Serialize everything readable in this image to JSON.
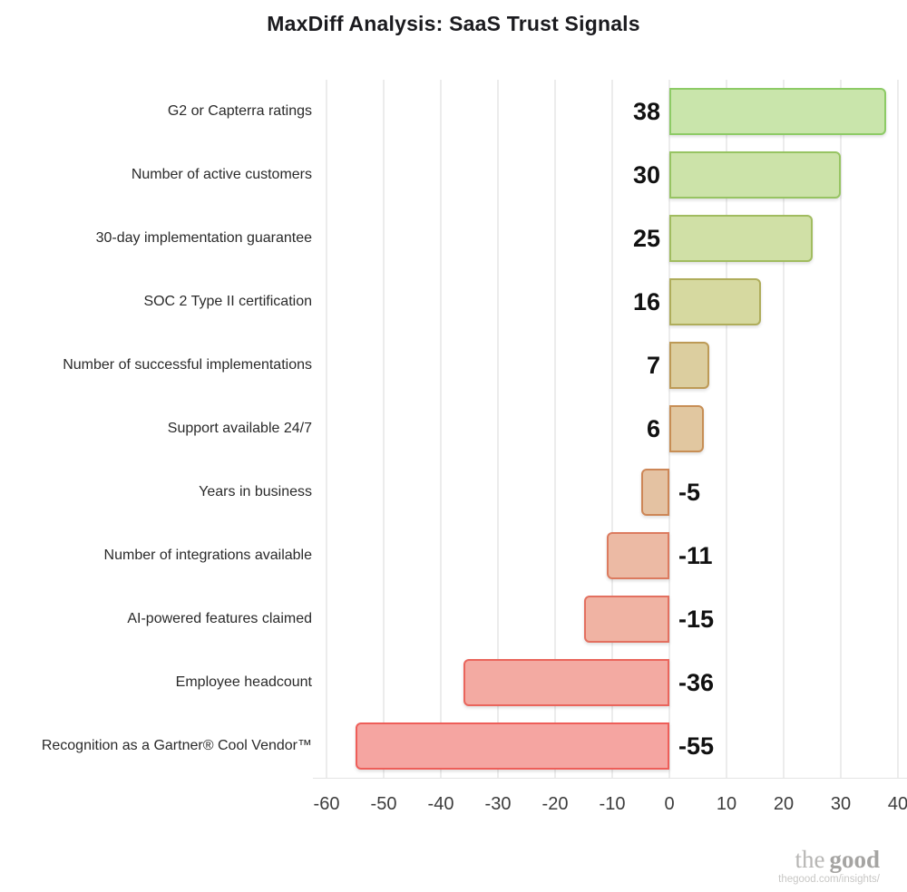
{
  "title": "MaxDiff Analysis: SaaS Trust Signals",
  "chart_data": {
    "type": "bar",
    "orientation": "horizontal",
    "title": "MaxDiff Analysis: SaaS Trust Signals",
    "categories": [
      "G2 or Capterra ratings",
      "Number of active customers",
      "30-day implementation guarantee",
      "SOC 2 Type II certification",
      "Number of successful implementations",
      "Support available 24/7",
      "Years in business",
      "Number of integrations available",
      "AI-powered features claimed",
      "Employee headcount",
      "Recognition as a Gartner® Cool Vendor™"
    ],
    "values": [
      38,
      30,
      25,
      16,
      7,
      6,
      -5,
      -11,
      -15,
      -36,
      -55
    ],
    "value_labels": [
      "38",
      "30",
      "25",
      "16",
      "7",
      "6",
      "-5",
      "-11",
      "-15",
      "-36",
      "-55"
    ],
    "bar_colors": [
      {
        "fill": "#c9e5ab",
        "border": "#8dcb66"
      },
      {
        "fill": "#cce3a9",
        "border": "#97c463"
      },
      {
        "fill": "#d0e0a6",
        "border": "#a1bc60"
      },
      {
        "fill": "#d6d9a0",
        "border": "#afad5b"
      },
      {
        "fill": "#dcce9f",
        "border": "#bd9a56"
      },
      {
        "fill": "#e1c7a0",
        "border": "#c78e55"
      },
      {
        "fill": "#e4c2a2",
        "border": "#cd8656"
      },
      {
        "fill": "#ecbaa4",
        "border": "#dc7b5f"
      },
      {
        "fill": "#f0b3a3",
        "border": "#e37060"
      },
      {
        "fill": "#f3aaa2",
        "border": "#ea655c"
      },
      {
        "fill": "#f5a5a1",
        "border": "#ee5e59"
      }
    ],
    "xlim": [
      -60,
      40
    ],
    "x_ticks": [
      -60,
      -50,
      -40,
      -30,
      -20,
      -10,
      0,
      10,
      20,
      30,
      40
    ],
    "x_tick_labels": [
      "-60",
      "-50",
      "-40",
      "-30",
      "-20",
      "-10",
      "0",
      "10",
      "20",
      "30",
      "40"
    ],
    "grid": true,
    "legend": "none",
    "grid_color": "#ececec",
    "positive_color_range": [
      "#c9e5ab",
      "#e1c7a0"
    ],
    "negative_color_range": [
      "#e4c2a2",
      "#f5a5a1"
    ]
  },
  "footer": {
    "brand_the": "the",
    "brand_good": "good",
    "url": "thegood.com/insights/"
  }
}
